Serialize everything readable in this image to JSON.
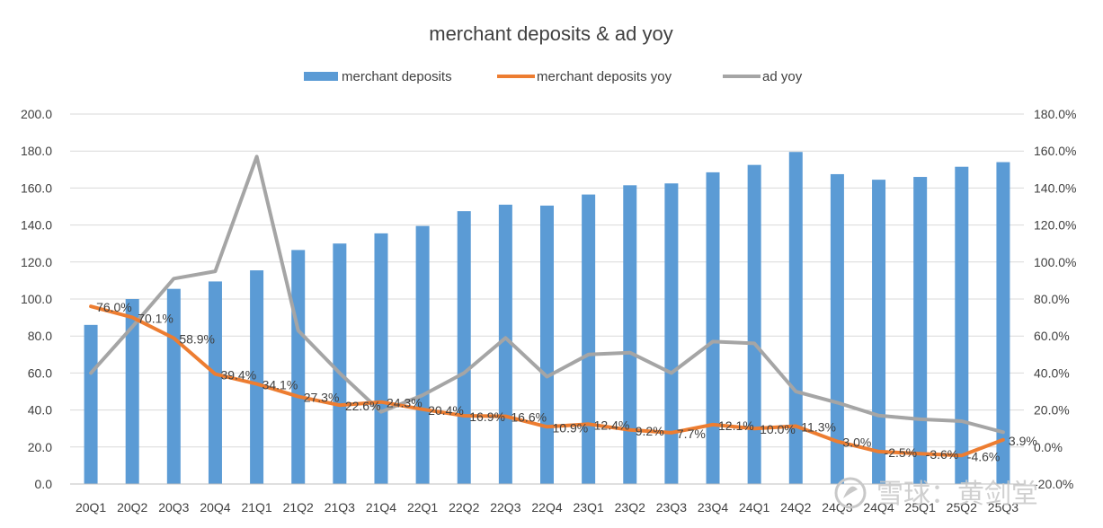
{
  "chart_data": {
    "type": "bar",
    "title": "merchant deposits & ad  yoy",
    "categories": [
      "20Q1",
      "20Q2",
      "20Q3",
      "20Q4",
      "21Q1",
      "21Q2",
      "21Q3",
      "21Q4",
      "22Q1",
      "22Q2",
      "22Q3",
      "22Q4",
      "23Q1",
      "23Q2",
      "23Q3",
      "23Q4",
      "24Q1",
      "24Q2",
      "24Q3",
      "24Q4",
      "25Q1",
      "25Q2",
      "25Q3"
    ],
    "ylim_left": [
      0,
      200
    ],
    "yticks_left": [
      "0.0",
      "20.0",
      "40.0",
      "60.0",
      "80.0",
      "100.0",
      "120.0",
      "140.0",
      "160.0",
      "180.0",
      "200.0"
    ],
    "ylim_right": [
      -20,
      180
    ],
    "yticks_right": [
      "-20.0%",
      "0.0%",
      "20.0%",
      "40.0%",
      "60.0%",
      "80.0%",
      "100.0%",
      "120.0%",
      "140.0%",
      "160.0%",
      "180.0%"
    ],
    "legend_position": "top",
    "grid": true,
    "series": [
      {
        "name": "merchant deposits",
        "type": "bar",
        "axis": "left",
        "color": "#5B9BD5",
        "values": [
          86,
          100,
          105.5,
          109.5,
          115.5,
          126.5,
          130,
          135.5,
          139.5,
          147.5,
          151,
          150.5,
          156.5,
          161.5,
          162.5,
          168.5,
          172.5,
          179.5,
          167.5,
          164.5,
          166,
          171.5,
          174
        ]
      },
      {
        "name": "merchant deposits yoy",
        "type": "line",
        "axis": "right",
        "color": "#ED7D31",
        "values": [
          76.0,
          70.1,
          58.9,
          39.4,
          34.1,
          27.3,
          22.6,
          24.3,
          20.4,
          16.9,
          16.6,
          10.9,
          12.4,
          9.2,
          7.7,
          12.1,
          10.0,
          11.3,
          3.0,
          -2.5,
          -3.6,
          -4.6,
          3.9
        ],
        "labels": [
          "76.0%",
          "70.1%",
          "58.9%",
          "39.4%",
          "34.1%",
          "27.3%",
          "22.6%",
          "24.3%",
          "20.4%",
          "16.9%",
          "16.6%",
          "10.9%",
          "12.4%",
          "9.2%",
          "7.7%",
          "12.1%",
          "10.0%",
          "11.3%",
          "3.0%",
          "-2.5%",
          "-3.6%",
          "-4.6%",
          "3.9%"
        ]
      },
      {
        "name": "ad yoy",
        "type": "line",
        "axis": "right",
        "color": "#A5A5A5",
        "values": [
          40,
          65,
          91,
          95,
          157,
          63,
          40,
          19,
          28,
          40,
          59,
          38,
          50,
          51,
          40,
          57,
          56,
          30,
          24,
          17,
          15,
          14,
          8
        ]
      }
    ]
  },
  "watermark": {
    "text": "雪球：黄剑堂",
    "icon": "snowball-logo-icon"
  }
}
